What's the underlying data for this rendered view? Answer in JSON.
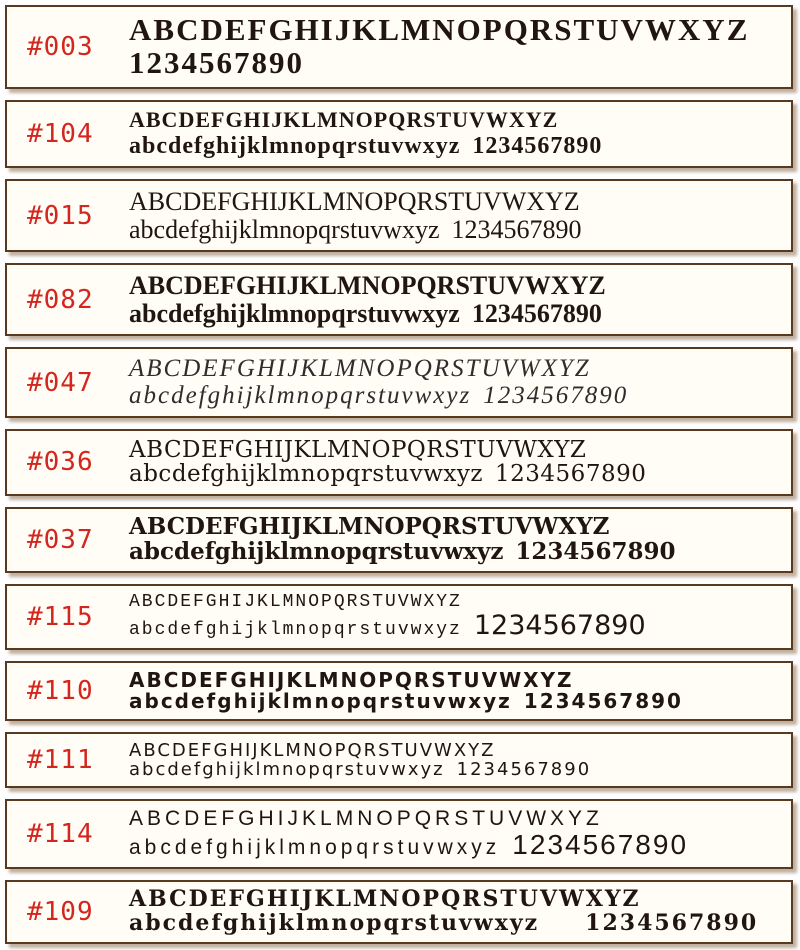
{
  "palette": {
    "page_background": "#ffffff",
    "box_background": "#fffdf6",
    "box_border": "#5a3a1f",
    "box_shadow": "rgba(140,110,80,0.55)",
    "id_color": "#d3261f",
    "sample_color": "#201510"
  },
  "rows": [
    {
      "id": "#003",
      "style": "heavy-stencil-slab-serif",
      "uppercase": "ABCDEFGHIJKLMNOPQRSTUVWXYZ",
      "lowercase": "",
      "digits": "1234567890"
    },
    {
      "id": "#104",
      "style": "stencil-bold-serif",
      "uppercase": "ABCDEFGHIJKLMNOPQRSTUVWXYZ",
      "lowercase": "abcdefghijklmnopqrstuvwxyz",
      "digits": "1234567890"
    },
    {
      "id": "#015",
      "style": "condensed-serif-regular",
      "uppercase": "ABCDEFGHIJKLMNOPQRSTUVWXYZ",
      "lowercase": "abcdefghijklmnopqrstuvwxyz",
      "digits": "1234567890"
    },
    {
      "id": "#082",
      "style": "condensed-serif-bold",
      "uppercase": "ABCDEFGHIJKLMNOPQRSTUVWXYZ",
      "lowercase": "abcdefghijklmnopqrstuvwxyz",
      "digits": "1234567890"
    },
    {
      "id": "#047",
      "style": "italic-serif-light",
      "uppercase": "ABCDEFGHIJKLMNOPQRSTUVWXYZ",
      "lowercase": "abcdefghijklmnopqrstuvwxyz",
      "digits": "1234567890"
    },
    {
      "id": "#036",
      "style": "typewriter-slab-serif",
      "uppercase": "ABCDEFGHIJKLMNOPQRSTUVWXYZ",
      "lowercase": "abcdefghijklmnopqrstuvwxyz",
      "digits": "1234567890"
    },
    {
      "id": "#037",
      "style": "rounded-slab-serif",
      "uppercase": "ABCDEFGHIJKLMNOPQRSTUVWXYZ",
      "lowercase": "abcdefghijklmnopqrstuvwxyz",
      "digits": "1234567890"
    },
    {
      "id": "#115",
      "style": "spaced-typewriter-with-script-digits",
      "uppercase": "ABCDEFGHIJKLMNOPQRSTUVWXYZ",
      "lowercase": "abcdefghijklmnopqrstuvwxyz",
      "digits": "1234567890"
    },
    {
      "id": "#110",
      "style": "bold-marker-handwriting",
      "uppercase": "ABCDEFGHIJKLMNOPQRSTUVWXYZ",
      "lowercase": "abcdefghijklmnopqrstuvwxyz",
      "digits": "1234567890"
    },
    {
      "id": "#111",
      "style": "rounded-casual-sans",
      "uppercase": "ABCDEFGHIJKLMNOPQRSTUVWXYZ",
      "lowercase": "abcdefghijklmnopqrstuvwxyz",
      "digits": "1234567890"
    },
    {
      "id": "#114",
      "style": "casual-handwriting-sans",
      "uppercase": "ABCDEFGHIJKLMNOPQRSTUVWXYZ",
      "lowercase": "abcdefghijklmnopqrstuvwxyz",
      "digits": "1234567890"
    },
    {
      "id": "#109",
      "style": "western-condensed-slab-bold",
      "uppercase": "ABCDEFGHIJKLMNOPQRSTUVWXYZ",
      "lowercase": "abcdefghijklmnopqrstuvwxyz",
      "digits": "1234567890"
    }
  ]
}
